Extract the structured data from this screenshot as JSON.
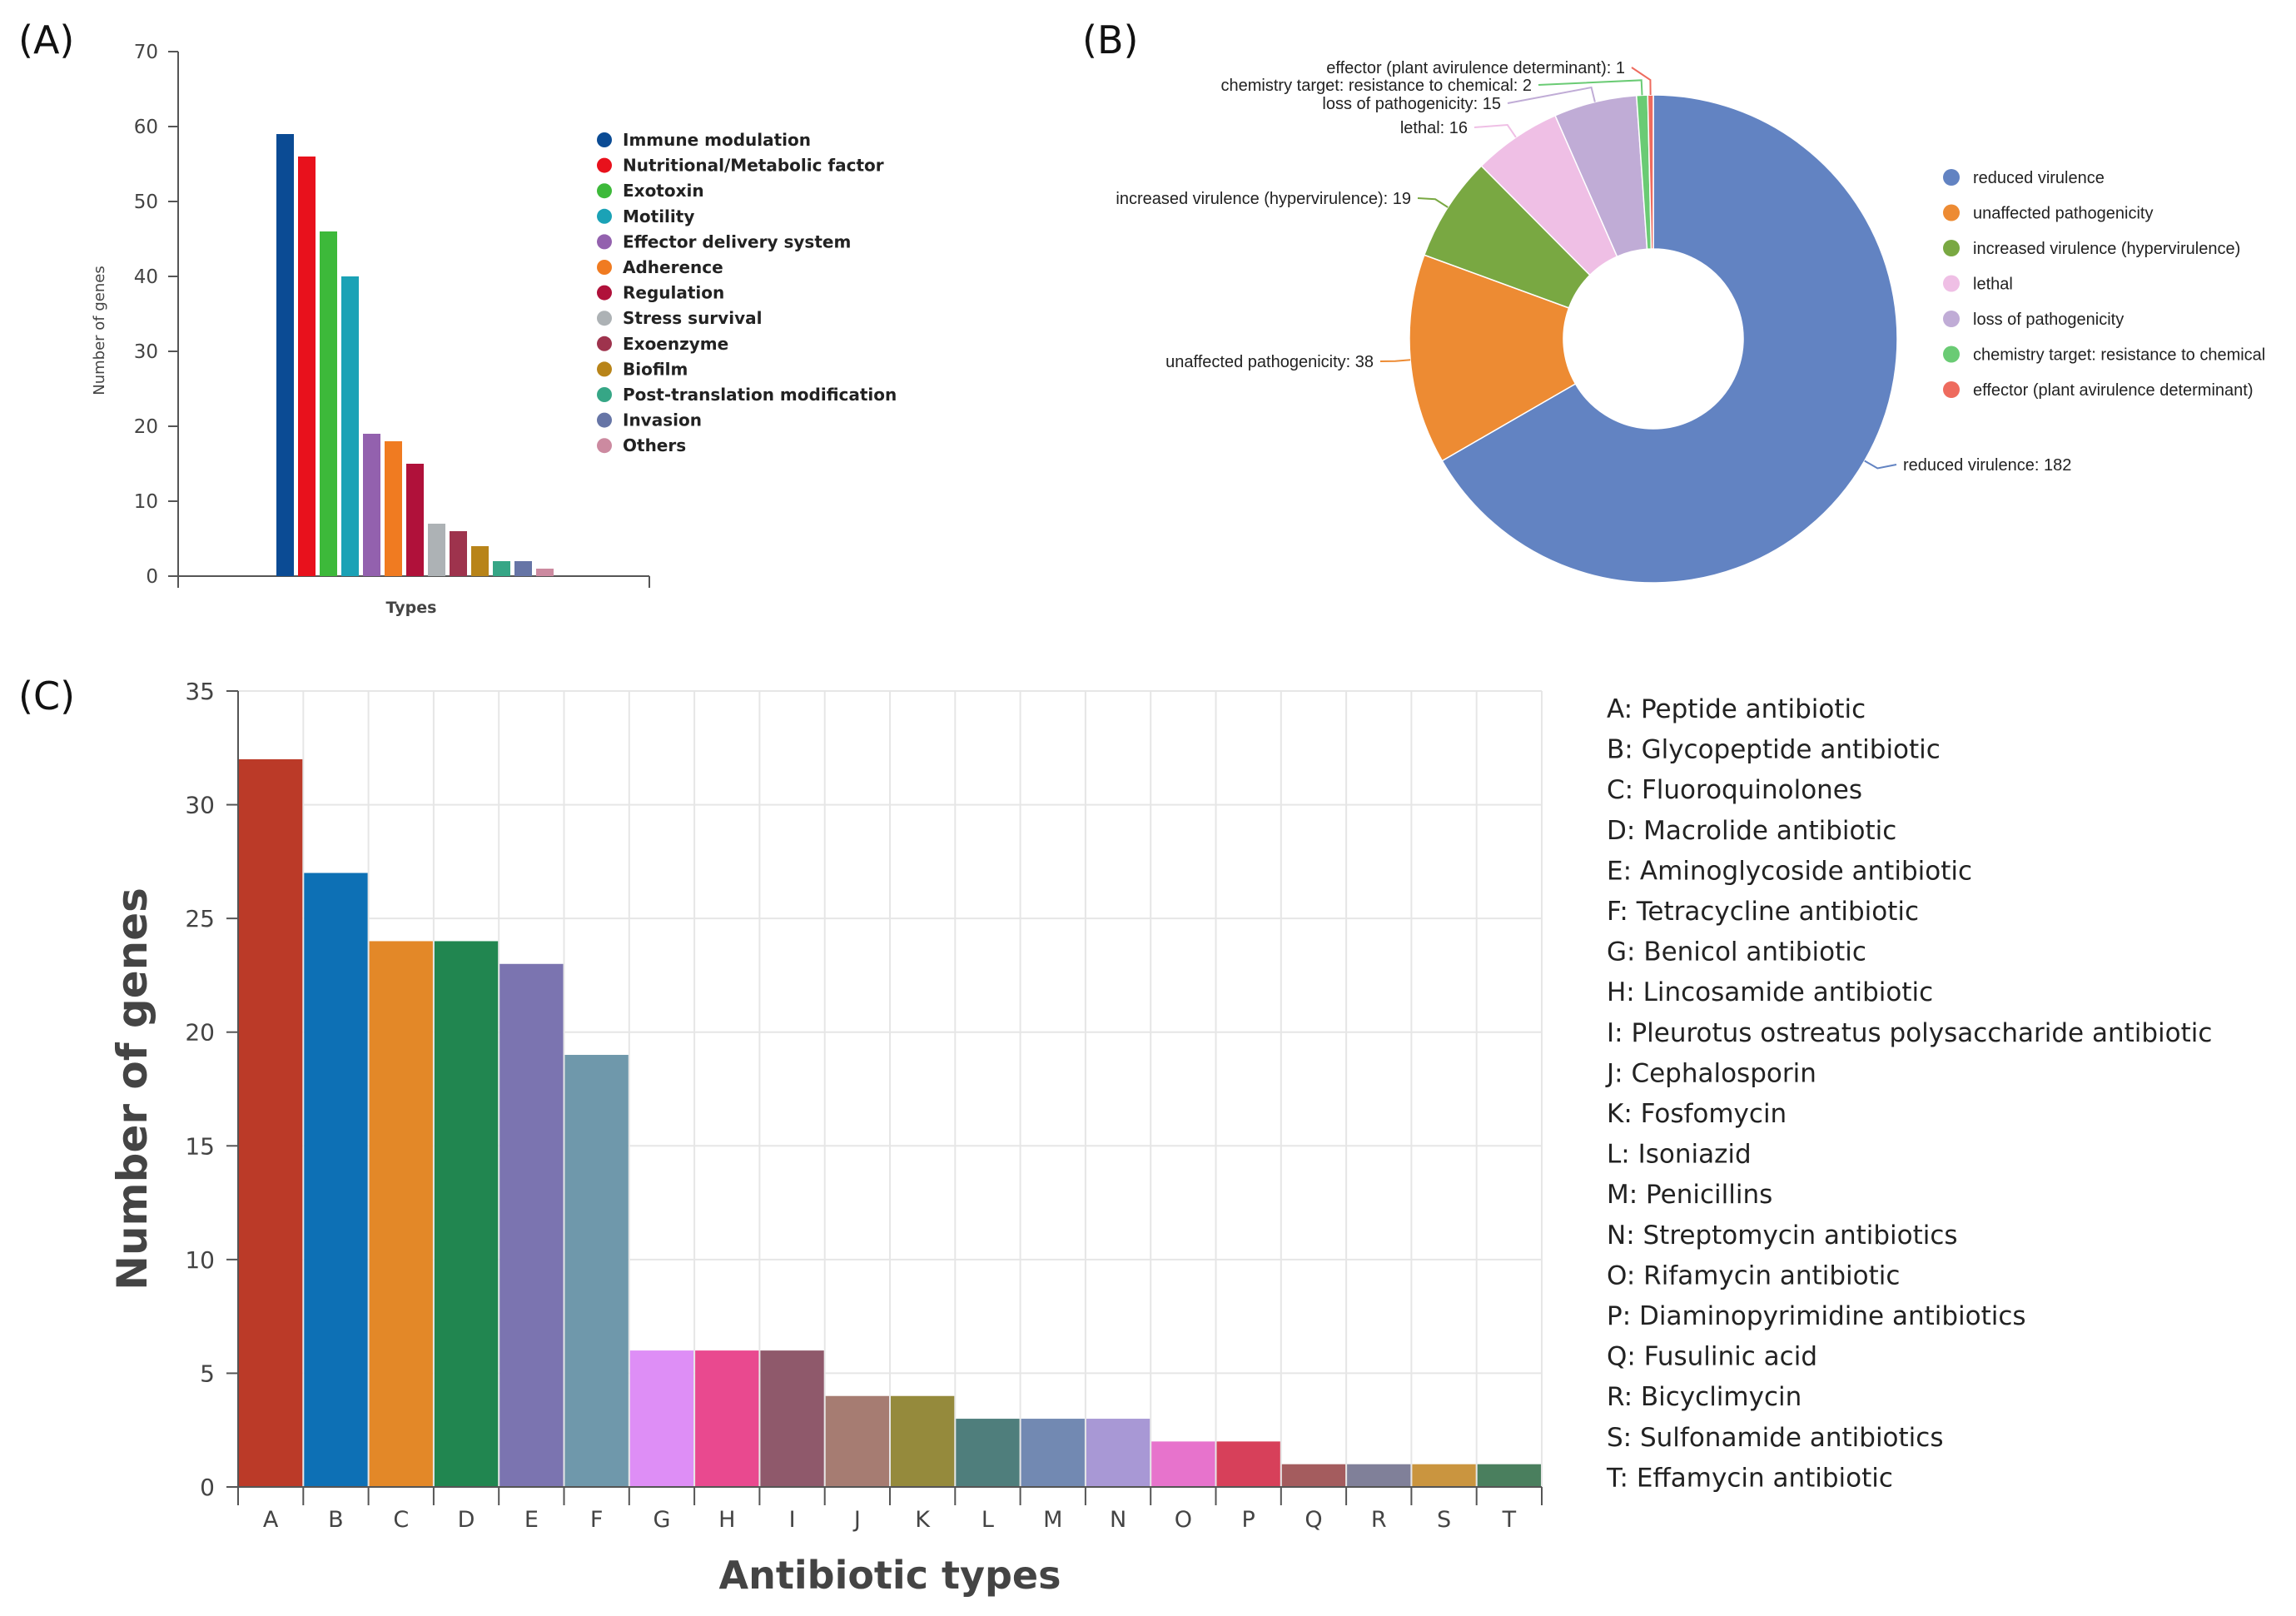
{
  "panel_labels": {
    "a": "(A)",
    "b": "(B)",
    "c": "(C)"
  },
  "chart_data": [
    {
      "id": "A",
      "type": "bar",
      "xlabel": "Types",
      "ylabel": "Number of genes",
      "ylim": [
        0,
        70
      ],
      "yticks": [
        0,
        10,
        20,
        30,
        40,
        50,
        60,
        70
      ],
      "legend_position": "right",
      "categories": [
        "Immune modulation",
        "Nutritional/Metabolic factor",
        "Exotoxin",
        "Motility",
        "Effector delivery system",
        "Adherence",
        "Regulation",
        "Stress survival",
        "Exoenzyme",
        "Biofilm",
        "Post-translation modification",
        "Invasion",
        "Others"
      ],
      "values": [
        59,
        56,
        46,
        40,
        19,
        18,
        15,
        7,
        6,
        4,
        2,
        2,
        1
      ],
      "colors": [
        "#0b4b94",
        "#e8111c",
        "#3db93a",
        "#1ba2b6",
        "#9361ae",
        "#f07b21",
        "#b0113a",
        "#adb2b5",
        "#9e334d",
        "#b88419",
        "#36a686",
        "#6675a6",
        "#cc8aa0"
      ]
    },
    {
      "id": "B",
      "type": "pie",
      "donut": true,
      "legend_position": "right",
      "slices": [
        {
          "label": "reduced virulence",
          "value": 182,
          "color": "#6283c2",
          "callout": "reduced virulence: 182"
        },
        {
          "label": "unaffected pathogenicity",
          "value": 38,
          "color": "#ed8b33",
          "callout": "unaffected pathogenicity: 38"
        },
        {
          "label": "increased virulence (hypervirulence)",
          "value": 19,
          "color": "#79a842",
          "callout": "increased virulence (hypervirulence): 19"
        },
        {
          "label": "lethal",
          "value": 16,
          "color": "#efbfe5",
          "callout": "lethal: 16"
        },
        {
          "label": "loss of pathogenicity",
          "value": 15,
          "color": "#c0acd6",
          "callout": "loss of pathogenicity: 15"
        },
        {
          "label": "chemistry target: resistance to chemical",
          "value": 2,
          "color": "#6acb74",
          "callout": "chemistry target: resistance to chemical: 2"
        },
        {
          "label": "effector (plant avirulence determinant)",
          "value": 1,
          "color": "#ee6b5e",
          "callout": "effector (plant avirulence determinant): 1"
        }
      ]
    },
    {
      "id": "C",
      "type": "bar",
      "xlabel": "Antibiotic types",
      "ylabel": "Number of genes",
      "ylim": [
        0,
        35
      ],
      "yticks": [
        0,
        5,
        10,
        15,
        20,
        25,
        30,
        35
      ],
      "grid": true,
      "legend_position": "right",
      "categories": [
        "A",
        "B",
        "C",
        "D",
        "E",
        "F",
        "G",
        "H",
        "I",
        "J",
        "K",
        "L",
        "M",
        "N",
        "O",
        "P",
        "Q",
        "R",
        "S",
        "T"
      ],
      "values": [
        32,
        27,
        24,
        24,
        23,
        19,
        6,
        6,
        6,
        4,
        4,
        3,
        3,
        3,
        2,
        2,
        1,
        1,
        1,
        1
      ],
      "colors": [
        "#bb3a28",
        "#0d70b5",
        "#e38828",
        "#218650",
        "#7b74b0",
        "#6f98ab",
        "#de8ef6",
        "#e9498f",
        "#8f596b",
        "#a67c72",
        "#958a3c",
        "#4f7e7c",
        "#7289b2",
        "#a898d5",
        "#e773cc",
        "#d7405a",
        "#a45c5e",
        "#808099",
        "#ca953f",
        "#4a7f5e"
      ],
      "legend": [
        "A: Peptide antibiotic",
        "B: Glycopeptide antibiotic",
        "C: Fluoroquinolones",
        "D: Macrolide antibiotic",
        "E: Aminoglycoside antibiotic",
        "F: Tetracycline antibiotic",
        "G: Benicol antibiotic",
        "H: Lincosamide antibiotic",
        "I: Pleurotus ostreatus polysaccharide antibiotic",
        "J: Cephalosporin",
        "K: Fosfomycin",
        "L: Isoniazid",
        "M: Penicillins",
        "N: Streptomycin antibiotics",
        "O: Rifamycin antibiotic",
        "P: Diaminopyrimidine antibiotics",
        "Q: Fusulinic acid",
        "R: Bicyclimycin",
        "S: Sulfonamide antibiotics",
        "T: Effamycin antibiotic"
      ]
    }
  ]
}
